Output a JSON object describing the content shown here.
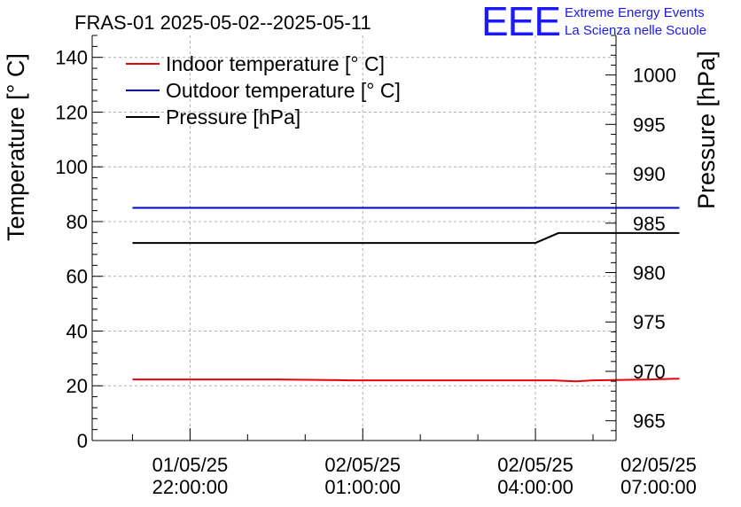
{
  "chart_data": {
    "type": "line",
    "title": "FRAS-01 2025-05-02--2025-05-11",
    "ylabel_left": "Temperature [° C]",
    "ylabel_right": "Pressure [hPa]",
    "ylim_left": [
      0,
      148
    ],
    "ylim_right": [
      963,
      1004
    ],
    "xlim_hours": [
      -1.7,
      7.4
    ],
    "grid": true,
    "legend_position": "top-left",
    "x_ticks": [
      {
        "hours": 0,
        "date": "01/05/25",
        "time": "22:00:00"
      },
      {
        "hours": 3,
        "date": "02/05/25",
        "time": "01:00:00"
      },
      {
        "hours": 6,
        "date": "02/05/25",
        "time": "04:00:00"
      },
      {
        "hours": 9,
        "date": "02/05/25",
        "time": "07:00:00"
      }
    ],
    "y_ticks_left": [
      0,
      20,
      40,
      60,
      80,
      100,
      120,
      140
    ],
    "y_ticks_right": [
      965,
      970,
      975,
      980,
      985,
      990,
      995,
      1000
    ],
    "series": [
      {
        "name": "Indoor temperature [° C]",
        "color": "#e8000b",
        "axis": "left",
        "x": [
          -1.0,
          1.5,
          2.8,
          5.0,
          6.3,
          6.7,
          7.0,
          8.0,
          8.5
        ],
        "y": [
          22.3,
          22.3,
          22.0,
          22.0,
          22.0,
          21.6,
          22.0,
          22.3,
          22.6
        ]
      },
      {
        "name": "Outdoor temperature [° C]",
        "color": "#0000cc",
        "axis": "left",
        "x": [
          -1.0,
          8.5
        ],
        "y": [
          85.0,
          85.0
        ]
      },
      {
        "name": "Pressure [hPa]",
        "color": "#000000",
        "axis": "right",
        "x": [
          -1.0,
          6.0,
          6.4,
          7.0,
          8.5
        ],
        "y": [
          983.0,
          983.0,
          984.0,
          984.0,
          984.0
        ]
      }
    ]
  },
  "logo": {
    "mark": "EEE",
    "line1": "Extreme Energy Events",
    "line2": "La Scienza nelle Scuole"
  }
}
